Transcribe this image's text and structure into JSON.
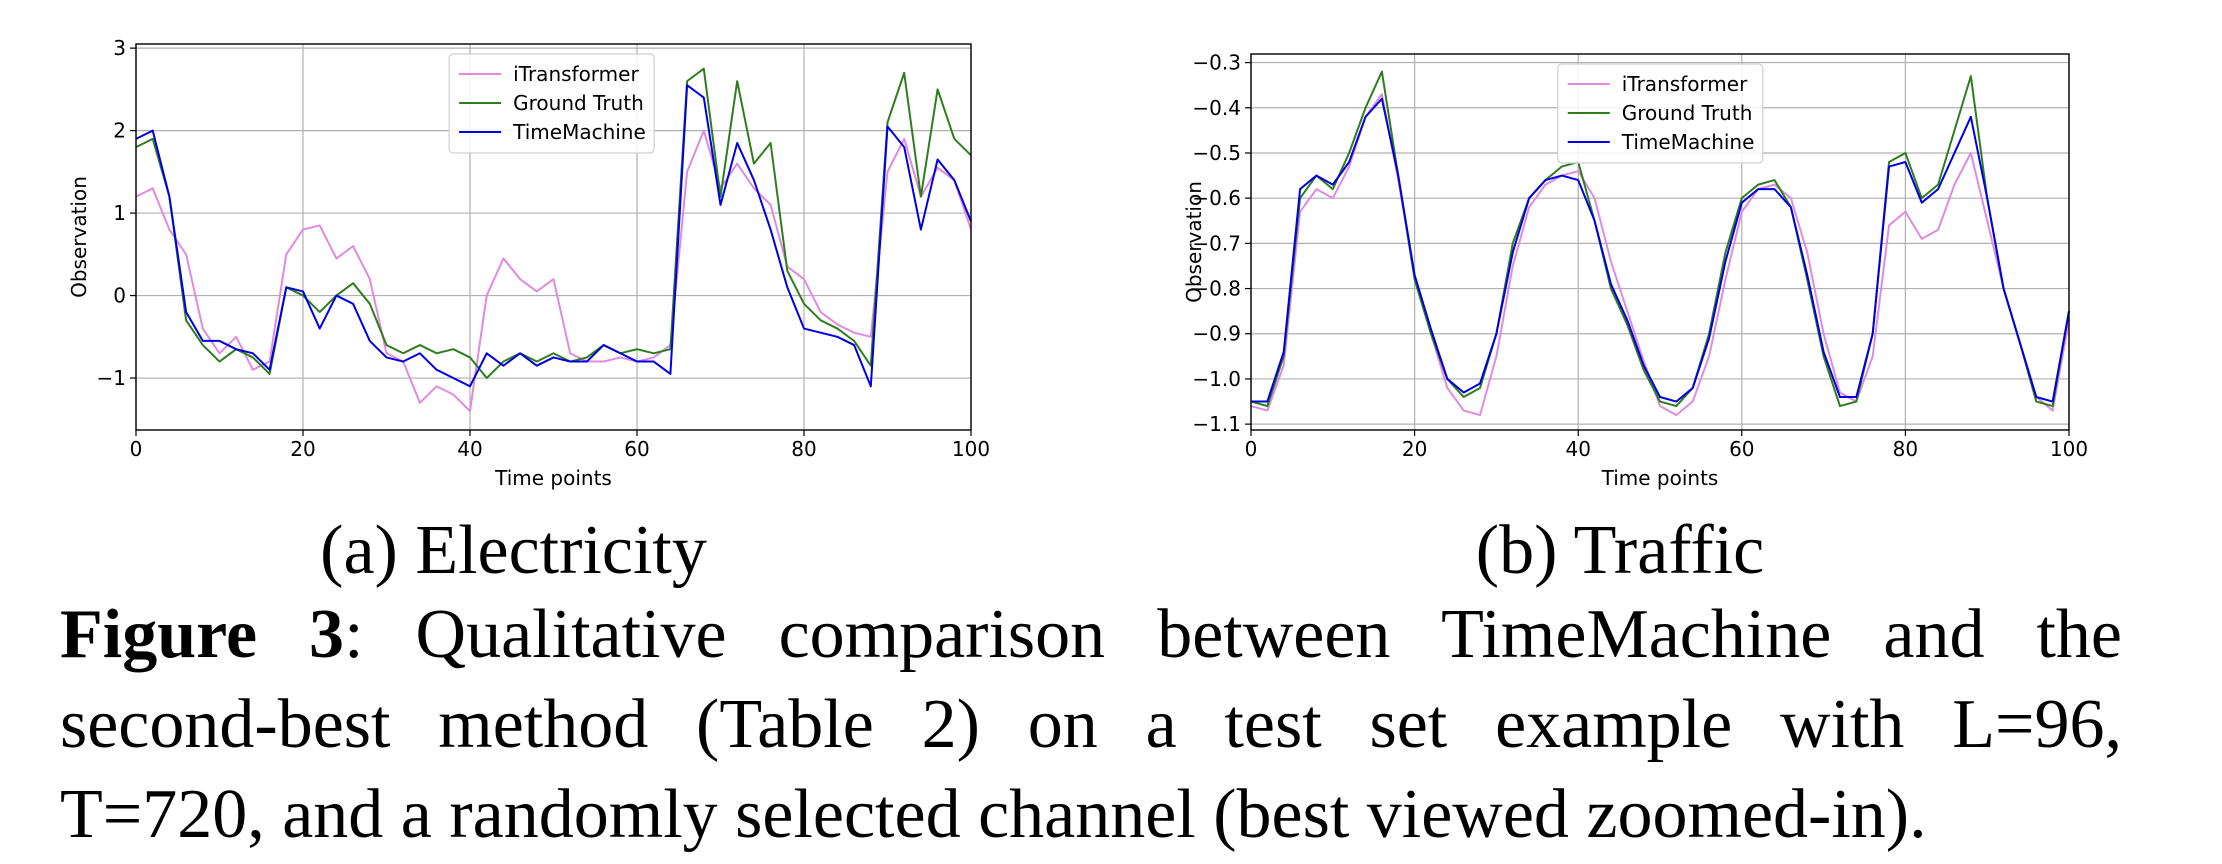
{
  "chart_data": [
    {
      "type": "line",
      "caption": "(a) Electricity",
      "xlabel": "Time points",
      "ylabel": "Observation",
      "x": [
        0,
        2,
        4,
        6,
        8,
        10,
        12,
        14,
        16,
        18,
        20,
        22,
        24,
        26,
        28,
        30,
        32,
        34,
        36,
        38,
        40,
        42,
        44,
        46,
        48,
        50,
        52,
        54,
        56,
        58,
        60,
        62,
        64,
        66,
        68,
        70,
        72,
        74,
        76,
        78,
        80,
        82,
        84,
        86,
        88,
        90,
        92,
        94,
        96,
        98,
        100
      ],
      "xlim": [
        0,
        100
      ],
      "xticks": [
        0,
        20,
        40,
        60,
        80,
        100
      ],
      "ylim": [
        -1.63,
        3.05
      ],
      "yticks": [
        {
          "value": -1,
          "label": "−1"
        },
        0,
        1,
        2,
        3
      ],
      "grid": true,
      "legend": "upper center",
      "series": [
        {
          "name": "iTransformer",
          "color": "#e08ae0",
          "values": [
            1.2,
            1.3,
            0.8,
            0.5,
            -0.4,
            -0.7,
            -0.5,
            -0.9,
            -0.8,
            0.5,
            0.8,
            0.85,
            0.45,
            0.6,
            0.2,
            -0.7,
            -0.8,
            -1.3,
            -1.1,
            -1.2,
            -1.4,
            0.0,
            0.45,
            0.2,
            0.05,
            0.2,
            -0.7,
            -0.8,
            -0.8,
            -0.75,
            -0.8,
            -0.75,
            -0.6,
            1.5,
            2.0,
            1.3,
            1.6,
            1.3,
            1.1,
            0.35,
            0.2,
            -0.2,
            -0.35,
            -0.45,
            -0.5,
            1.5,
            1.9,
            1.2,
            1.55,
            1.4,
            0.8
          ]
        },
        {
          "name": "Ground Truth",
          "color": "#2e7d1e",
          "values": [
            1.8,
            1.9,
            1.2,
            -0.3,
            -0.6,
            -0.8,
            -0.65,
            -0.75,
            -0.95,
            0.1,
            0.0,
            -0.2,
            0.0,
            0.15,
            -0.1,
            -0.6,
            -0.7,
            -0.6,
            -0.7,
            -0.65,
            -0.75,
            -1.0,
            -0.8,
            -0.7,
            -0.8,
            -0.7,
            -0.8,
            -0.75,
            -0.6,
            -0.7,
            -0.65,
            -0.7,
            -0.65,
            2.6,
            2.75,
            1.2,
            2.6,
            1.6,
            1.85,
            0.3,
            -0.1,
            -0.3,
            -0.4,
            -0.55,
            -0.85,
            2.1,
            2.7,
            1.2,
            2.5,
            1.9,
            1.7
          ]
        },
        {
          "name": "TimeMachine",
          "color": "#0000e0",
          "values": [
            1.9,
            2.0,
            1.2,
            -0.2,
            -0.55,
            -0.55,
            -0.65,
            -0.7,
            -0.9,
            0.1,
            0.05,
            -0.4,
            0.0,
            -0.1,
            -0.55,
            -0.75,
            -0.8,
            -0.7,
            -0.9,
            -1.0,
            -1.1,
            -0.7,
            -0.85,
            -0.7,
            -0.85,
            -0.75,
            -0.8,
            -0.8,
            -0.6,
            -0.7,
            -0.8,
            -0.8,
            -0.95,
            2.55,
            2.4,
            1.1,
            1.85,
            1.4,
            0.8,
            0.1,
            -0.4,
            -0.45,
            -0.5,
            -0.6,
            -1.1,
            2.05,
            1.8,
            0.8,
            1.65,
            1.4,
            0.9
          ]
        }
      ]
    },
    {
      "type": "line",
      "caption": "(b) Traffic",
      "xlabel": "Time points",
      "ylabel": "Observation",
      "x": [
        0,
        2,
        4,
        6,
        8,
        10,
        12,
        14,
        16,
        18,
        20,
        22,
        24,
        26,
        28,
        30,
        32,
        34,
        36,
        38,
        40,
        42,
        44,
        46,
        48,
        50,
        52,
        54,
        56,
        58,
        60,
        62,
        64,
        66,
        68,
        70,
        72,
        74,
        76,
        78,
        80,
        82,
        84,
        86,
        88,
        90,
        92,
        94,
        96,
        98,
        100
      ],
      "xlim": [
        0,
        100
      ],
      "xticks": [
        0,
        20,
        40,
        60,
        80,
        100
      ],
      "ylim": [
        -1.113,
        -0.281
      ],
      "yticks": [
        {
          "value": -1.1,
          "label": "−1.1"
        },
        {
          "value": -1.0,
          "label": "−1.0"
        },
        {
          "value": -0.9,
          "label": "−0.9"
        },
        {
          "value": -0.8,
          "label": "−0.8"
        },
        {
          "value": -0.7,
          "label": "−0.7"
        },
        {
          "value": -0.6,
          "label": "−0.6"
        },
        {
          "value": -0.5,
          "label": "−0.5"
        },
        {
          "value": -0.4,
          "label": "−0.4"
        },
        {
          "value": -0.3,
          "label": "−0.3"
        }
      ],
      "grid": true,
      "legend": "upper center",
      "series": [
        {
          "name": "iTransformer",
          "color": "#e08ae0",
          "values": [
            -1.06,
            -1.07,
            -0.97,
            -0.63,
            -0.58,
            -0.6,
            -0.53,
            -0.42,
            -0.37,
            -0.56,
            -0.77,
            -0.9,
            -1.02,
            -1.07,
            -1.08,
            -0.95,
            -0.75,
            -0.62,
            -0.57,
            -0.55,
            -0.54,
            -0.6,
            -0.74,
            -0.85,
            -0.96,
            -1.06,
            -1.08,
            -1.05,
            -0.95,
            -0.78,
            -0.63,
            -0.58,
            -0.57,
            -0.6,
            -0.72,
            -0.9,
            -1.03,
            -1.05,
            -0.95,
            -0.66,
            -0.63,
            -0.69,
            -0.67,
            -0.57,
            -0.5,
            -0.65,
            -0.8,
            -0.92,
            -1.04,
            -1.07,
            -0.87
          ]
        },
        {
          "name": "Ground Truth",
          "color": "#2e7d1e",
          "values": [
            -1.05,
            -1.06,
            -0.95,
            -0.6,
            -0.55,
            -0.58,
            -0.5,
            -0.4,
            -0.32,
            -0.55,
            -0.78,
            -0.9,
            -1.0,
            -1.04,
            -1.02,
            -0.9,
            -0.7,
            -0.6,
            -0.56,
            -0.53,
            -0.52,
            -0.65,
            -0.8,
            -0.88,
            -0.98,
            -1.05,
            -1.06,
            -1.02,
            -0.9,
            -0.72,
            -0.6,
            -0.57,
            -0.56,
            -0.62,
            -0.78,
            -0.95,
            -1.06,
            -1.05,
            -0.9,
            -0.52,
            -0.5,
            -0.6,
            -0.57,
            -0.45,
            -0.33,
            -0.6,
            -0.8,
            -0.92,
            -1.05,
            -1.06,
            -0.85
          ]
        },
        {
          "name": "TimeMachine",
          "color": "#0000e0",
          "values": [
            -1.05,
            -1.05,
            -0.94,
            -0.58,
            -0.55,
            -0.57,
            -0.52,
            -0.42,
            -0.38,
            -0.55,
            -0.77,
            -0.89,
            -1.0,
            -1.03,
            -1.01,
            -0.9,
            -0.72,
            -0.6,
            -0.56,
            -0.55,
            -0.56,
            -0.65,
            -0.79,
            -0.87,
            -0.97,
            -1.04,
            -1.05,
            -1.02,
            -0.91,
            -0.74,
            -0.61,
            -0.58,
            -0.58,
            -0.62,
            -0.77,
            -0.94,
            -1.04,
            -1.04,
            -0.9,
            -0.53,
            -0.52,
            -0.61,
            -0.58,
            -0.5,
            -0.42,
            -0.6,
            -0.8,
            -0.92,
            -1.04,
            -1.05,
            -0.85
          ]
        }
      ]
    }
  ],
  "figure_caption": {
    "label": "Figure 3",
    "lines": [
      ": Qualitative comparison between TimeMachine and the",
      "second-best method (Table 2) on a test set example with L=96,",
      "T=720, and a randomly selected channel (best viewed zoomed-in)."
    ]
  }
}
